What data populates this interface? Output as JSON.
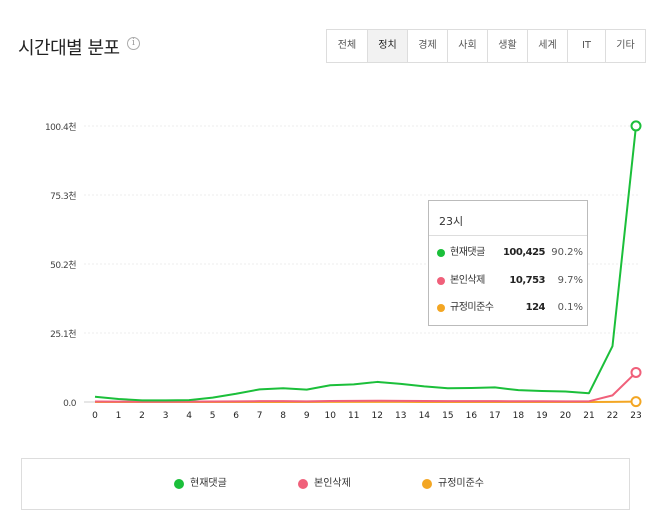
{
  "header": {
    "title": "시간대별 분포",
    "info_icon": "i"
  },
  "tabs": [
    {
      "label": "전체",
      "active": false
    },
    {
      "label": "정치",
      "active": true
    },
    {
      "label": "경제",
      "active": false
    },
    {
      "label": "사회",
      "active": false
    },
    {
      "label": "생활",
      "active": false
    },
    {
      "label": "세계",
      "active": false
    },
    {
      "label": "IT",
      "active": false
    },
    {
      "label": "기타",
      "active": false
    }
  ],
  "chart_data": {
    "type": "line",
    "x": [
      0,
      1,
      2,
      3,
      4,
      5,
      6,
      7,
      8,
      9,
      10,
      11,
      12,
      13,
      14,
      15,
      16,
      17,
      18,
      19,
      20,
      21,
      22,
      23
    ],
    "yticks": [
      "0.0",
      "25.1천",
      "50.2천",
      "75.3천",
      "100.4천"
    ],
    "ylim": [
      0,
      100400
    ],
    "grid": true,
    "legend_position": "bottom",
    "series": [
      {
        "name": "현재댓글",
        "color": "#1bbf3a",
        "values": [
          1900,
          1100,
          600,
          600,
          700,
          1600,
          3000,
          4600,
          5000,
          4500,
          6100,
          6400,
          7300,
          6600,
          5700,
          5000,
          5100,
          5300,
          4300,
          4000,
          3800,
          3200,
          20300,
          100425
        ]
      },
      {
        "name": "본인삭제",
        "color": "#f0607a",
        "values": [
          200,
          150,
          100,
          100,
          120,
          200,
          250,
          300,
          300,
          250,
          350,
          400,
          450,
          400,
          350,
          300,
          300,
          300,
          280,
          260,
          250,
          250,
          2400,
          10753
        ]
      },
      {
        "name": "규정미준수",
        "color": "#f3a623",
        "values": [
          20,
          15,
          10,
          10,
          10,
          15,
          20,
          20,
          20,
          20,
          25,
          25,
          25,
          25,
          20,
          20,
          20,
          20,
          20,
          20,
          20,
          20,
          40,
          124
        ]
      }
    ]
  },
  "tooltip": {
    "hour": "23시",
    "rows": [
      {
        "name": "현재댓글",
        "value": "100,425",
        "pct": "90.2%",
        "color": "#1bbf3a"
      },
      {
        "name": "본인삭제",
        "value": "10,753",
        "pct": "9.7%",
        "color": "#f0607a"
      },
      {
        "name": "규정미준수",
        "value": "124",
        "pct": "0.1%",
        "color": "#f3a623"
      }
    ]
  },
  "legend": [
    {
      "name": "현재댓글",
      "color": "#1bbf3a"
    },
    {
      "name": "본인삭제",
      "color": "#f0607a"
    },
    {
      "name": "규정미준수",
      "color": "#f3a623"
    }
  ]
}
